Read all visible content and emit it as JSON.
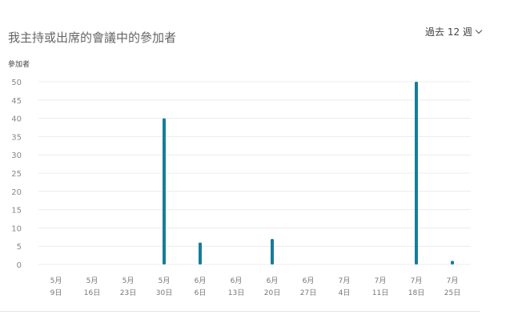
{
  "header": {
    "title": "我主持或出席的會議中的參加者",
    "range_select": "過去 12 週"
  },
  "chart_data": {
    "type": "bar",
    "title": "",
    "ylabel": "參加者",
    "xlabel": "",
    "ylim": [
      0,
      50
    ],
    "yticks": [
      0,
      5,
      10,
      15,
      20,
      25,
      30,
      35,
      40,
      45,
      50
    ],
    "grid": true,
    "categories": [
      [
        "5月",
        "9日"
      ],
      [
        "5月",
        "16日"
      ],
      [
        "5月",
        "23日"
      ],
      [
        "5月",
        "30日"
      ],
      [
        "6月",
        "6日"
      ],
      [
        "6月",
        "13日"
      ],
      [
        "6月",
        "20日"
      ],
      [
        "6月",
        "27日"
      ],
      [
        "7月",
        "4日"
      ],
      [
        "7月",
        "11日"
      ],
      [
        "7月",
        "18日"
      ],
      [
        "7月",
        "25日"
      ]
    ],
    "values": [
      0,
      0,
      0,
      40,
      6,
      0,
      7,
      0,
      0,
      0,
      50,
      1
    ],
    "bar_color": "#177d99"
  }
}
